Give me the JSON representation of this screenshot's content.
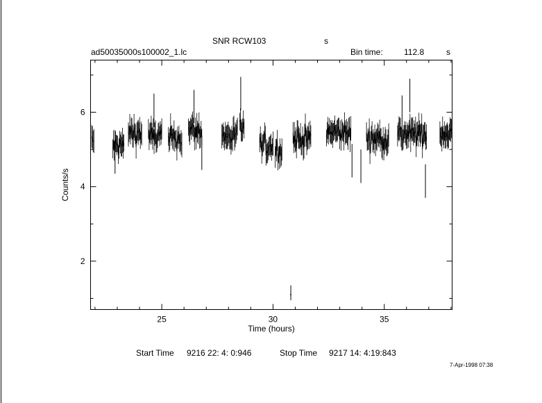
{
  "header": {
    "title": "SNR RCW103",
    "title_suffix": "s",
    "file_name": "ad50035000s100002_1.lc",
    "bin_time_label": "Bin time:",
    "bin_time_value": "112.8",
    "bin_time_unit": "s"
  },
  "footer": {
    "start_label": "Start Time",
    "start_value": "9216 22: 4: 0:946",
    "stop_label": "Stop Time",
    "stop_value": "9217 14: 4:19:843",
    "timestamp": "7-Apr-1998 07:38"
  },
  "chart_data": {
    "type": "line",
    "title": "SNR RCW103",
    "xlabel": "Time (hours)",
    "ylabel": "Counts/s",
    "xlim": [
      21.8,
      38.05
    ],
    "ylim": [
      0.7,
      7.4
    ],
    "xticks": [
      25,
      30,
      35
    ],
    "yticks": [
      2,
      4,
      6
    ],
    "grid": false,
    "segments": [
      {
        "x0": 21.85,
        "x1": 21.95,
        "mean": 5.2
      },
      {
        "x0": 22.8,
        "x1": 23.3,
        "mean": 5.1
      },
      {
        "x0": 23.5,
        "x1": 24.1,
        "mean": 5.45
      },
      {
        "x0": 24.4,
        "x1": 25.0,
        "mean": 5.35
      },
      {
        "x0": 25.3,
        "x1": 25.9,
        "mean": 5.3
      },
      {
        "x0": 26.2,
        "x1": 26.8,
        "mean": 5.5
      },
      {
        "x0": 27.7,
        "x1": 28.4,
        "mean": 5.35
      },
      {
        "x0": 28.5,
        "x1": 28.7,
        "mean": 5.6
      },
      {
        "x0": 29.4,
        "x1": 30.0,
        "mean": 5.1
      },
      {
        "x0": 30.1,
        "x1": 30.4,
        "mean": 5.0
      },
      {
        "x0": 30.9,
        "x1": 31.7,
        "mean": 5.3
      },
      {
        "x0": 32.4,
        "x1": 33.5,
        "mean": 5.45
      },
      {
        "x0": 34.2,
        "x1": 35.2,
        "mean": 5.3
      },
      {
        "x0": 35.6,
        "x1": 36.9,
        "mean": 5.4
      },
      {
        "x0": 37.5,
        "x1": 38.05,
        "mean": 5.45
      }
    ],
    "spikes": [
      {
        "x": 28.55,
        "y": 6.95
      },
      {
        "x": 26.45,
        "y": 6.6
      },
      {
        "x": 24.65,
        "y": 6.5
      },
      {
        "x": 36.15,
        "y": 6.9
      },
      {
        "x": 35.8,
        "y": 6.45
      },
      {
        "x": 36.85,
        "y": 3.7
      },
      {
        "x": 33.95,
        "y": 4.1
      },
      {
        "x": 33.55,
        "y": 4.25
      },
      {
        "x": 26.8,
        "y": 4.45
      },
      {
        "x": 22.9,
        "y": 4.35
      }
    ],
    "outlier": {
      "x": 30.8,
      "y_low": 0.95,
      "y_high": 1.35
    }
  }
}
